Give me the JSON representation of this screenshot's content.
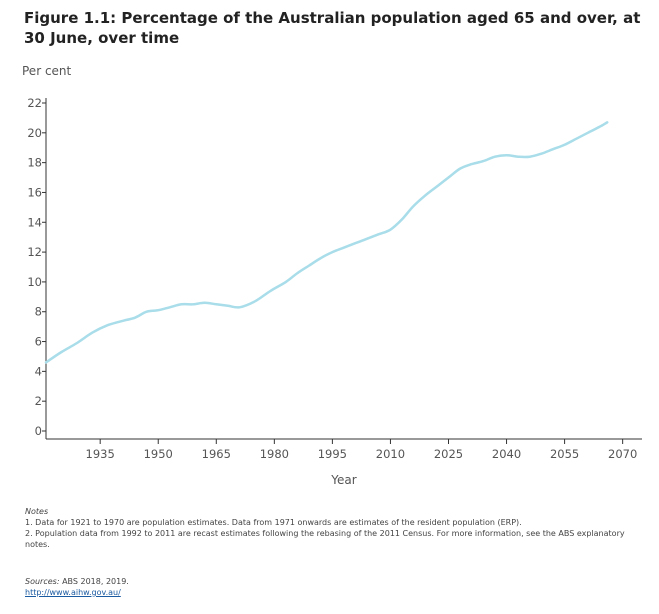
{
  "title": "Figure 1.1: Percentage of the Australian population aged 65 and over, at 30 June, over time",
  "notes": {
    "heading": "Notes",
    "lines": [
      "1. Data for 1921 to 1970 are population estimates. Data from 1971 onwards are estimates of the resident population (ERP).",
      "2.  Population data from 1992 to 2011 are recast estimates following the rebasing of the 2011 Census. For more information, see the ABS explanatory notes."
    ]
  },
  "sources": {
    "label": "Sources:",
    "text": "ABS 2018, 2019.",
    "link": "http://www.aihw.gov.au/"
  },
  "colors": {
    "line": "#a8dde9",
    "axis": "#333333",
    "text": "#555555"
  },
  "chart_data": {
    "type": "line",
    "title": "Figure 1.1: Percentage of the Australian population aged 65 and over, at 30 June, over time",
    "xlabel": "Year",
    "ylabel": "Per cent",
    "xlim": [
      1921,
      2075
    ],
    "ylim": [
      0,
      22
    ],
    "x_ticks": [
      1935,
      1950,
      1965,
      1980,
      1995,
      2010,
      2025,
      2040,
      2055,
      2070
    ],
    "y_ticks": [
      0,
      2,
      4,
      6,
      8,
      10,
      12,
      14,
      16,
      18,
      20,
      22
    ],
    "grid": false,
    "series": [
      {
        "x": [
          1921,
          1925,
          1929,
          1933,
          1937,
          1941,
          1944,
          1947,
          1950,
          1953,
          1956,
          1959,
          1962,
          1965,
          1968,
          1971,
          1975,
          1979,
          1983,
          1986,
          1989,
          1992,
          1995,
          1998,
          2001,
          2004,
          2007,
          2010,
          2013,
          2016,
          2019,
          2022,
          2025,
          2028,
          2031,
          2034,
          2037,
          2040,
          2043,
          2046,
          2049,
          2052,
          2055,
          2058,
          2061,
          2064,
          2066
        ],
        "y": [
          4.6,
          5.3,
          5.9,
          6.6,
          7.1,
          7.4,
          7.6,
          8.0,
          8.1,
          8.3,
          8.5,
          8.5,
          8.6,
          8.5,
          8.4,
          8.3,
          8.7,
          9.4,
          10.0,
          10.6,
          11.1,
          11.6,
          12.0,
          12.3,
          12.6,
          12.9,
          13.2,
          13.5,
          14.2,
          15.1,
          15.8,
          16.4,
          17.0,
          17.6,
          17.9,
          18.1,
          18.4,
          18.5,
          18.4,
          18.4,
          18.6,
          18.9,
          19.2,
          19.6,
          20.0,
          20.4,
          20.7
        ]
      }
    ]
  }
}
